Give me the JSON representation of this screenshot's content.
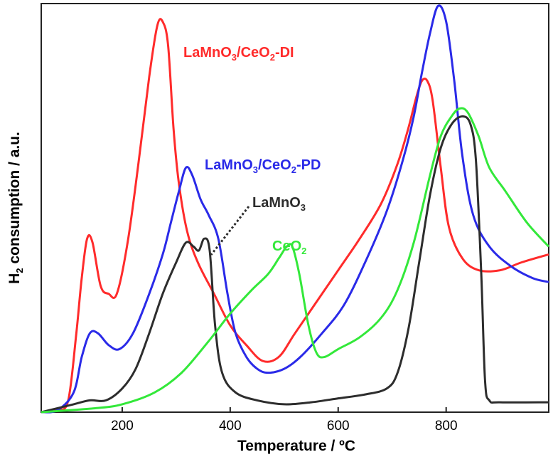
{
  "chart_data": {
    "type": "line",
    "title": "",
    "xlabel": "Temperature / ºC",
    "ylabel": "H2 consumption / a.u.",
    "xlim": [
      50,
      990
    ],
    "ylim": [
      0,
      100
    ],
    "xticks": [
      200,
      400,
      600,
      800
    ],
    "y_ticks_shown": false,
    "grid": false,
    "legend": "none (inline series labels)",
    "series": [
      {
        "name": "LaMnO3/CeO2-DI",
        "color": "#ff2b2b",
        "points": [
          [
            50,
            0
          ],
          [
            80,
            0.5
          ],
          [
            100,
            3
          ],
          [
            115,
            20
          ],
          [
            125,
            34
          ],
          [
            135,
            44
          ],
          [
            145,
            43
          ],
          [
            160,
            32
          ],
          [
            175,
            30
          ],
          [
            190,
            30
          ],
          [
            210,
            43
          ],
          [
            230,
            63
          ],
          [
            250,
            85
          ],
          [
            265,
            98
          ],
          [
            275,
            99
          ],
          [
            285,
            93
          ],
          [
            295,
            72
          ],
          [
            305,
            58
          ],
          [
            320,
            46
          ],
          [
            340,
            38
          ],
          [
            370,
            30
          ],
          [
            400,
            22
          ],
          [
            430,
            17
          ],
          [
            460,
            13
          ],
          [
            490,
            14
          ],
          [
            520,
            20
          ],
          [
            560,
            28
          ],
          [
            600,
            36
          ],
          [
            640,
            44
          ],
          [
            680,
            53
          ],
          [
            710,
            63
          ],
          [
            730,
            72
          ],
          [
            745,
            80
          ],
          [
            755,
            84
          ],
          [
            765,
            84
          ],
          [
            775,
            79
          ],
          [
            790,
            62
          ],
          [
            805,
            47
          ],
          [
            830,
            39
          ],
          [
            860,
            36
          ],
          [
            900,
            36
          ],
          [
            940,
            38
          ],
          [
            990,
            40
          ]
        ]
      },
      {
        "name": "LaMnO3/CeO2-PD",
        "color": "#2a2ae8",
        "points": [
          [
            50,
            0
          ],
          [
            80,
            0.5
          ],
          [
            110,
            5
          ],
          [
            125,
            14
          ],
          [
            140,
            20
          ],
          [
            155,
            20
          ],
          [
            175,
            17
          ],
          [
            195,
            16
          ],
          [
            220,
            20
          ],
          [
            250,
            30
          ],
          [
            275,
            40
          ],
          [
            290,
            48
          ],
          [
            305,
            56
          ],
          [
            318,
            62
          ],
          [
            330,
            60
          ],
          [
            345,
            54
          ],
          [
            360,
            50
          ],
          [
            378,
            44
          ],
          [
            395,
            30
          ],
          [
            410,
            20
          ],
          [
            430,
            14
          ],
          [
            450,
            11
          ],
          [
            470,
            10
          ],
          [
            500,
            11
          ],
          [
            530,
            14
          ],
          [
            570,
            20
          ],
          [
            610,
            27
          ],
          [
            650,
            38
          ],
          [
            690,
            51
          ],
          [
            720,
            64
          ],
          [
            740,
            75
          ],
          [
            755,
            86
          ],
          [
            770,
            96
          ],
          [
            785,
            103
          ],
          [
            800,
            99
          ],
          [
            815,
            84
          ],
          [
            830,
            65
          ],
          [
            850,
            50
          ],
          [
            880,
            42
          ],
          [
            920,
            37
          ],
          [
            960,
            34
          ],
          [
            990,
            33
          ]
        ]
      },
      {
        "name": "LaMnO3",
        "color": "#2d2d2d",
        "points": [
          [
            50,
            0
          ],
          [
            110,
            2
          ],
          [
            140,
            3
          ],
          [
            170,
            3
          ],
          [
            200,
            6
          ],
          [
            225,
            11
          ],
          [
            250,
            20
          ],
          [
            275,
            30
          ],
          [
            300,
            38
          ],
          [
            318,
            43
          ],
          [
            332,
            42
          ],
          [
            342,
            41
          ],
          [
            352,
            44
          ],
          [
            362,
            41
          ],
          [
            372,
            22
          ],
          [
            385,
            10
          ],
          [
            410,
            5
          ],
          [
            450,
            3
          ],
          [
            500,
            2
          ],
          [
            550,
            2.5
          ],
          [
            600,
            3.5
          ],
          [
            650,
            4.5
          ],
          [
            690,
            6
          ],
          [
            710,
            10
          ],
          [
            730,
            21
          ],
          [
            750,
            38
          ],
          [
            770,
            55
          ],
          [
            790,
            67
          ],
          [
            810,
            73
          ],
          [
            830,
            75
          ],
          [
            845,
            73
          ],
          [
            855,
            64
          ],
          [
            865,
            35
          ],
          [
            872,
            8
          ],
          [
            880,
            3
          ],
          [
            900,
            2.5
          ],
          [
            990,
            2.5
          ]
        ]
      },
      {
        "name": "CeO2",
        "color": "#33e83a",
        "points": [
          [
            50,
            0
          ],
          [
            150,
            1
          ],
          [
            200,
            2
          ],
          [
            260,
            5
          ],
          [
            310,
            10
          ],
          [
            360,
            18
          ],
          [
            400,
            25
          ],
          [
            440,
            31
          ],
          [
            470,
            35
          ],
          [
            490,
            39
          ],
          [
            505,
            42
          ],
          [
            515,
            42
          ],
          [
            528,
            35
          ],
          [
            545,
            22
          ],
          [
            560,
            15
          ],
          [
            575,
            14
          ],
          [
            600,
            16
          ],
          [
            640,
            19
          ],
          [
            680,
            24
          ],
          [
            710,
            31
          ],
          [
            740,
            43
          ],
          [
            770,
            60
          ],
          [
            790,
            70
          ],
          [
            810,
            75
          ],
          [
            825,
            77
          ],
          [
            840,
            76
          ],
          [
            860,
            70
          ],
          [
            880,
            62
          ],
          [
            910,
            56
          ],
          [
            950,
            48
          ],
          [
            990,
            42
          ]
        ]
      }
    ]
  },
  "annotations": {
    "di": {
      "main": "LaMnO",
      "sub": "3",
      "rest": "/CeO",
      "sub2": "2",
      "tail": "-DI"
    },
    "pd": {
      "main": "LaMnO",
      "sub": "3",
      "rest": "/CeO",
      "sub2": "2",
      "tail": "-PD"
    },
    "lamno3": {
      "main": "LaMnO",
      "sub": "3"
    },
    "ceo2": {
      "main": "CeO",
      "sub": "2"
    }
  },
  "axes": {
    "xlabel": "Temperature / ºC",
    "ylabel_main": "H",
    "ylabel_sub": "2",
    "ylabel_rest": " consumption / a.u."
  }
}
